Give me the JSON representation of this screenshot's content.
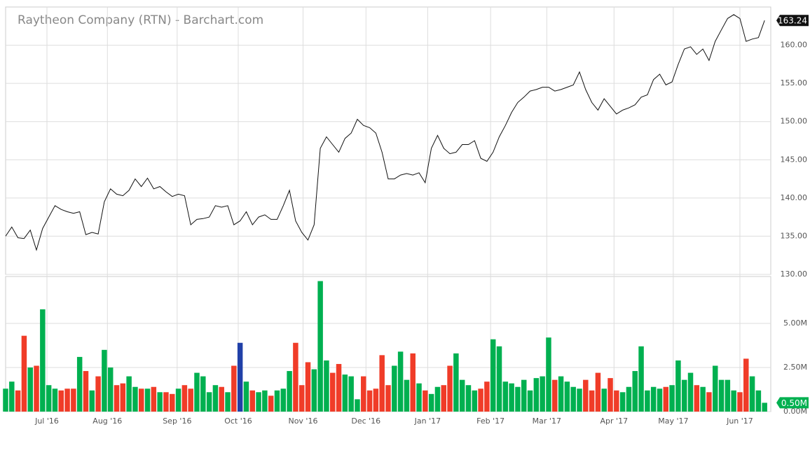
{
  "chart_data": [
    {
      "type": "line",
      "title": "Raytheon Company (RTN) - Barchart.com",
      "color": "#111111",
      "grid": true,
      "values": [
        135,
        136.2,
        134.8,
        134.7,
        135.8,
        133.2,
        136,
        137.5,
        139,
        138.5,
        138.2,
        138,
        138.2,
        135.2,
        135.5,
        135.3,
        139.5,
        141.2,
        140.5,
        140.3,
        141,
        142.5,
        141.5,
        142.6,
        141.2,
        141.5,
        140.8,
        140.2,
        140.5,
        140.3,
        136.5,
        137.2,
        137.3,
        137.5,
        139,
        138.8,
        139,
        136.5,
        137,
        138.2,
        136.5,
        137.5,
        137.8,
        137.2,
        137.2,
        139,
        141,
        137,
        135.5,
        134.5,
        136.5,
        146.5,
        148,
        147,
        146,
        147.8,
        148.5,
        150.3,
        149.5,
        149.2,
        148.5,
        146,
        142.5,
        142.5,
        143,
        143.2,
        143,
        143.3,
        142,
        146.5,
        148.2,
        146.5,
        145.8,
        146,
        147,
        147,
        147.5,
        145.2,
        144.8,
        146,
        148,
        149.5,
        151.2,
        152.5,
        153.2,
        154,
        154.2,
        154.5,
        154.5,
        154,
        154.2,
        154.5,
        154.8,
        156.5,
        154.2,
        152.5,
        151.5,
        153,
        152,
        151,
        151.5,
        151.8,
        152.2,
        153.2,
        153.5,
        155.5,
        156.2,
        154.8,
        155.2,
        157.5,
        159.5,
        159.8,
        158.8,
        159.5,
        158,
        160.5,
        162,
        163.5,
        164,
        163.5,
        160.5,
        160.8,
        161,
        163.24
      ],
      "current": {
        "value": 163.24,
        "label": "163.24"
      },
      "xlim": [
        0,
        124
      ],
      "ylim": [
        130,
        165
      ],
      "yticks": [
        {
          "value": 130,
          "label": "130.00"
        },
        {
          "value": 135,
          "label": "135.00"
        },
        {
          "value": 140,
          "label": "140.00"
        },
        {
          "value": 145,
          "label": "145.00"
        },
        {
          "value": 150,
          "label": "150.00"
        },
        {
          "value": 155,
          "label": "155.00"
        },
        {
          "value": 160,
          "label": "160.00"
        }
      ]
    },
    {
      "type": "bar",
      "up_color": "#00b050",
      "down_color": "#f03c28",
      "highlight_index": 38,
      "highlight_color": "#2040a8",
      "grid": true,
      "values": [
        1300000,
        1700000,
        1200000,
        4300000,
        2500000,
        2600000,
        5800000,
        1500000,
        1300000,
        1200000,
        1300000,
        1300000,
        3100000,
        2300000,
        1200000,
        2000000,
        3500000,
        2500000,
        1500000,
        1600000,
        2000000,
        1400000,
        1300000,
        1300000,
        1400000,
        1100000,
        1100000,
        1000000,
        1300000,
        1500000,
        1300000,
        2200000,
        2000000,
        1100000,
        1500000,
        1400000,
        1100000,
        2600000,
        3900000,
        1700000,
        1200000,
        1100000,
        1200000,
        900000,
        1200000,
        1300000,
        2300000,
        3900000,
        1500000,
        2800000,
        2400000,
        7400000,
        2900000,
        2200000,
        2700000,
        2100000,
        2000000,
        700000,
        2000000,
        1200000,
        1300000,
        3200000,
        1500000,
        2600000,
        3400000,
        1800000,
        3300000,
        1600000,
        1200000,
        1000000,
        1400000,
        1500000,
        2600000,
        3300000,
        1800000,
        1500000,
        1200000,
        1300000,
        1700000,
        4100000,
        3700000,
        1700000,
        1600000,
        1400000,
        1800000,
        1200000,
        1900000,
        2000000,
        4200000,
        1800000,
        2000000,
        1700000,
        1400000,
        1300000,
        1800000,
        1200000,
        2200000,
        1300000,
        1900000,
        1200000,
        1100000,
        1400000,
        2300000,
        3700000,
        1200000,
        1400000,
        1300000,
        1400000,
        1500000,
        2900000,
        1800000,
        2200000,
        1500000,
        1400000,
        1100000,
        2600000,
        1800000,
        1800000,
        1200000,
        1100000,
        3000000,
        2000000,
        1200000,
        500000
      ],
      "current": {
        "value": 500000,
        "label": "0.50M"
      },
      "xlim": [
        0,
        124
      ],
      "ylim": [
        0,
        7660000
      ],
      "yticks": [
        {
          "value": 0,
          "label": "0.00M"
        },
        {
          "value": 2500000,
          "label": "2.50M"
        },
        {
          "value": 5000000,
          "label": "5.00M"
        }
      ],
      "xticks": [
        {
          "value": 6.7,
          "label": "Jul '16"
        },
        {
          "value": 16.5,
          "label": "Aug '16"
        },
        {
          "value": 27.8,
          "label": "Sep '16"
        },
        {
          "value": 37.7,
          "label": "Oct '16"
        },
        {
          "value": 48.2,
          "label": "Nov '16"
        },
        {
          "value": 58.4,
          "label": "Dec '16"
        },
        {
          "value": 68.4,
          "label": "Jan '17"
        },
        {
          "value": 78.6,
          "label": "Feb '17"
        },
        {
          "value": 87.7,
          "label": "Mar '17"
        },
        {
          "value": 98.6,
          "label": "Apr '17"
        },
        {
          "value": 108.2,
          "label": "May '17"
        },
        {
          "value": 119,
          "label": "Jun '17"
        }
      ]
    }
  ]
}
